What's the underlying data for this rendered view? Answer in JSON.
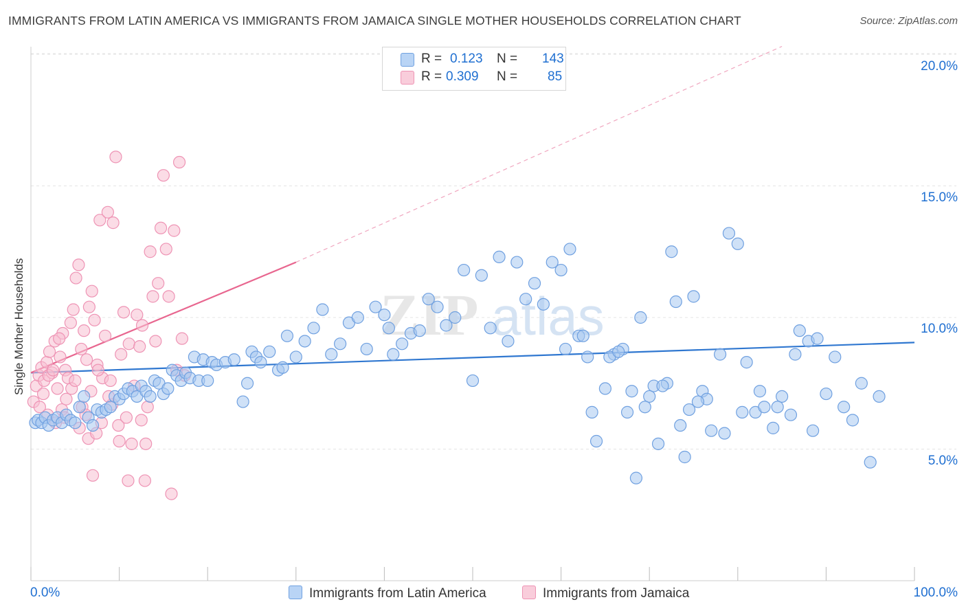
{
  "header": {
    "title": "IMMIGRANTS FROM LATIN AMERICA VS IMMIGRANTS FROM JAMAICA SINGLE MOTHER HOUSEHOLDS CORRELATION CHART",
    "source": "Source: ZipAtlas.com"
  },
  "watermark": {
    "zip": "ZIP",
    "atlas": "atlas"
  },
  "legend": {
    "blue": {
      "r_label": "R =",
      "r_value": "0.123",
      "n_label": "N =",
      "n_value": "143"
    },
    "pink": {
      "r_label": "R =",
      "r_value": "0.309",
      "n_label": "N =",
      "n_value": "85"
    }
  },
  "colors": {
    "blue_fill": "#a8c8f0",
    "blue_stroke": "#6fa0e0",
    "blue_line": "#2f77d0",
    "pink_fill": "#f7bfd2",
    "pink_stroke": "#ee93b4",
    "pink_line": "#e8668f",
    "axis_text": "#1f6fd1",
    "grid": "#e4e4e4"
  },
  "chart_data": {
    "type": "scatter",
    "title": "IMMIGRANTS FROM LATIN AMERICA VS IMMIGRANTS FROM JAMAICA SINGLE MOTHER HOUSEHOLDS CORRELATION CHART",
    "xlabel": "",
    "ylabel": "Single Mother Households",
    "xlim": [
      0,
      100
    ],
    "ylim": [
      0,
      20.5
    ],
    "x_tick_labels": [
      "0.0%",
      "100.0%"
    ],
    "y_ticks": [
      5,
      10,
      15,
      20
    ],
    "y_tick_labels": [
      "5.0%",
      "10.0%",
      "15.0%",
      "20.0%"
    ],
    "grid": true,
    "legend_position": "top-center",
    "series": [
      {
        "name": "Immigrants from Latin America",
        "color": "#a8c8f0",
        "trend": {
          "x": [
            0,
            100
          ],
          "y": [
            7.9,
            9.05
          ],
          "style": "solid"
        },
        "points": [
          [
            0.5,
            6.0
          ],
          [
            0.8,
            6.1
          ],
          [
            1.2,
            6.0
          ],
          [
            1.6,
            6.2
          ],
          [
            2.0,
            5.9
          ],
          [
            2.5,
            6.1
          ],
          [
            3.0,
            6.2
          ],
          [
            3.5,
            6.0
          ],
          [
            4.0,
            6.3
          ],
          [
            4.5,
            6.1
          ],
          [
            5.0,
            6.0
          ],
          [
            5.5,
            6.6
          ],
          [
            6.0,
            7.0
          ],
          [
            6.5,
            6.2
          ],
          [
            7.0,
            5.9
          ],
          [
            7.5,
            6.5
          ],
          [
            8.0,
            6.4
          ],
          [
            8.5,
            6.5
          ],
          [
            9.0,
            6.6
          ],
          [
            9.5,
            7.0
          ],
          [
            10.0,
            6.9
          ],
          [
            10.5,
            7.1
          ],
          [
            11.0,
            7.3
          ],
          [
            11.5,
            7.2
          ],
          [
            12.0,
            7.0
          ],
          [
            12.5,
            7.4
          ],
          [
            13.0,
            7.2
          ],
          [
            13.5,
            7.0
          ],
          [
            14.0,
            7.6
          ],
          [
            14.5,
            7.5
          ],
          [
            15.0,
            7.1
          ],
          [
            15.5,
            7.3
          ],
          [
            16.0,
            8.0
          ],
          [
            16.5,
            7.8
          ],
          [
            17.0,
            7.6
          ],
          [
            17.5,
            7.9
          ],
          [
            18.0,
            7.7
          ],
          [
            18.5,
            8.5
          ],
          [
            19.0,
            7.6
          ],
          [
            19.5,
            8.4
          ],
          [
            20.0,
            7.6
          ],
          [
            20.5,
            8.3
          ],
          [
            21.0,
            8.2
          ],
          [
            22.0,
            8.3
          ],
          [
            23.0,
            8.4
          ],
          [
            24.0,
            6.8
          ],
          [
            24.5,
            7.5
          ],
          [
            25.0,
            8.7
          ],
          [
            25.5,
            8.5
          ],
          [
            26.0,
            8.3
          ],
          [
            27.0,
            8.7
          ],
          [
            28.0,
            8.0
          ],
          [
            28.5,
            8.1
          ],
          [
            29.0,
            9.3
          ],
          [
            30.0,
            8.5
          ],
          [
            31.0,
            9.1
          ],
          [
            32.0,
            9.6
          ],
          [
            33.0,
            10.3
          ],
          [
            34.0,
            8.6
          ],
          [
            35.0,
            9.0
          ],
          [
            36.0,
            9.8
          ],
          [
            37.0,
            10.0
          ],
          [
            38.0,
            8.8
          ],
          [
            39.0,
            10.4
          ],
          [
            40.0,
            10.1
          ],
          [
            40.5,
            9.6
          ],
          [
            41.0,
            8.6
          ],
          [
            42.0,
            9.0
          ],
          [
            43.0,
            9.4
          ],
          [
            44.0,
            9.5
          ],
          [
            45.0,
            10.7
          ],
          [
            46.0,
            10.4
          ],
          [
            47.0,
            9.7
          ],
          [
            48.0,
            10.0
          ],
          [
            49.0,
            11.8
          ],
          [
            50.0,
            7.6
          ],
          [
            51.0,
            11.6
          ],
          [
            52.0,
            9.6
          ],
          [
            53.0,
            12.3
          ],
          [
            54.0,
            9.1
          ],
          [
            55.0,
            12.1
          ],
          [
            56.0,
            10.7
          ],
          [
            57.0,
            11.3
          ],
          [
            58.0,
            10.5
          ],
          [
            59.0,
            12.1
          ],
          [
            60.0,
            11.8
          ],
          [
            61.0,
            12.6
          ],
          [
            62.0,
            9.3
          ],
          [
            63.0,
            8.5
          ],
          [
            64.0,
            5.3
          ],
          [
            65.0,
            7.3
          ],
          [
            66.0,
            8.6
          ],
          [
            67.0,
            8.8
          ],
          [
            67.5,
            6.4
          ],
          [
            68.0,
            7.2
          ],
          [
            69.0,
            10.0
          ],
          [
            70.0,
            7.0
          ],
          [
            71.0,
            5.2
          ],
          [
            72.0,
            7.5
          ],
          [
            73.0,
            10.6
          ],
          [
            74.0,
            4.7
          ],
          [
            75.0,
            10.8
          ],
          [
            76.0,
            7.2
          ],
          [
            77.0,
            5.7
          ],
          [
            78.0,
            8.6
          ],
          [
            79.0,
            13.2
          ],
          [
            80.0,
            12.8
          ],
          [
            81.0,
            8.3
          ],
          [
            82.0,
            6.4
          ],
          [
            83.0,
            6.6
          ],
          [
            84.0,
            5.8
          ],
          [
            85.0,
            7.0
          ],
          [
            86.0,
            6.3
          ],
          [
            87.0,
            9.5
          ],
          [
            88.0,
            9.1
          ],
          [
            89.0,
            9.2
          ],
          [
            90.0,
            7.1
          ],
          [
            91.0,
            8.5
          ],
          [
            92.0,
            6.6
          ],
          [
            93.0,
            6.1
          ],
          [
            94.0,
            7.5
          ],
          [
            95.0,
            4.5
          ],
          [
            96.0,
            7.0
          ],
          [
            60.5,
            8.8
          ],
          [
            62.5,
            9.3
          ],
          [
            65.5,
            8.5
          ],
          [
            68.5,
            3.9
          ],
          [
            70.5,
            7.4
          ],
          [
            72.5,
            12.5
          ],
          [
            74.5,
            6.5
          ],
          [
            76.5,
            6.9
          ],
          [
            78.5,
            5.6
          ],
          [
            80.5,
            6.4
          ],
          [
            82.5,
            7.2
          ],
          [
            84.5,
            6.6
          ],
          [
            86.5,
            8.6
          ],
          [
            88.5,
            5.7
          ],
          [
            63.5,
            6.4
          ],
          [
            66.5,
            8.7
          ],
          [
            69.5,
            6.6
          ],
          [
            71.5,
            7.4
          ],
          [
            73.5,
            5.9
          ],
          [
            75.5,
            6.8
          ]
        ]
      },
      {
        "name": "Immigrants from Jamaica",
        "color": "#f7bfd2",
        "trend": {
          "x": [
            0,
            30
          ],
          "y": [
            7.9,
            12.1
          ],
          "style": "solid",
          "extended": {
            "x": [
              30,
              85
            ],
            "y": [
              12.1,
              20.3
            ],
            "style": "dashed"
          }
        },
        "points": [
          [
            0.3,
            6.8
          ],
          [
            0.6,
            7.4
          ],
          [
            0.9,
            7.8
          ],
          [
            1.2,
            8.1
          ],
          [
            1.5,
            7.6
          ],
          [
            1.8,
            8.3
          ],
          [
            2.1,
            8.7
          ],
          [
            2.4,
            7.9
          ],
          [
            2.7,
            9.1
          ],
          [
            3.0,
            7.3
          ],
          [
            3.3,
            8.5
          ],
          [
            3.6,
            9.4
          ],
          [
            3.9,
            8.0
          ],
          [
            4.2,
            7.7
          ],
          [
            4.5,
            9.8
          ],
          [
            4.8,
            10.3
          ],
          [
            5.1,
            11.5
          ],
          [
            5.4,
            12.0
          ],
          [
            5.7,
            8.8
          ],
          [
            6.0,
            9.5
          ],
          [
            6.3,
            8.4
          ],
          [
            6.6,
            10.4
          ],
          [
            6.9,
            11.0
          ],
          [
            7.2,
            9.9
          ],
          [
            7.5,
            8.2
          ],
          [
            7.8,
            13.7
          ],
          [
            8.1,
            7.7
          ],
          [
            8.4,
            9.3
          ],
          [
            8.7,
            14.0
          ],
          [
            9.0,
            7.6
          ],
          [
            9.3,
            13.6
          ],
          [
            9.6,
            16.1
          ],
          [
            9.9,
            5.9
          ],
          [
            10.2,
            8.6
          ],
          [
            10.5,
            10.2
          ],
          [
            10.8,
            6.2
          ],
          [
            11.1,
            9.0
          ],
          [
            11.4,
            5.2
          ],
          [
            11.7,
            7.4
          ],
          [
            12.0,
            10.1
          ],
          [
            12.3,
            8.9
          ],
          [
            12.6,
            9.7
          ],
          [
            12.9,
            3.8
          ],
          [
            13.2,
            6.6
          ],
          [
            13.5,
            12.5
          ],
          [
            13.8,
            10.8
          ],
          [
            14.1,
            9.1
          ],
          [
            14.4,
            11.3
          ],
          [
            14.7,
            13.4
          ],
          [
            15.0,
            15.4
          ],
          [
            15.3,
            12.6
          ],
          [
            15.6,
            10.8
          ],
          [
            15.9,
            3.3
          ],
          [
            16.2,
            13.3
          ],
          [
            16.5,
            8.0
          ],
          [
            16.8,
            15.9
          ],
          [
            17.1,
            9.2
          ],
          [
            17.4,
            7.8
          ],
          [
            2.0,
            7.8
          ],
          [
            3.5,
            6.5
          ],
          [
            4.0,
            6.9
          ],
          [
            5.5,
            5.8
          ],
          [
            6.5,
            5.4
          ],
          [
            7.0,
            4.0
          ],
          [
            8.0,
            6.0
          ],
          [
            9.2,
            6.7
          ],
          [
            10.0,
            5.3
          ],
          [
            11.0,
            3.8
          ],
          [
            12.5,
            6.1
          ],
          [
            13.0,
            5.2
          ],
          [
            2.5,
            8.0
          ],
          [
            3.2,
            9.2
          ],
          [
            4.6,
            7.3
          ],
          [
            5.8,
            6.6
          ],
          [
            6.8,
            7.2
          ],
          [
            7.6,
            8.0
          ],
          [
            8.8,
            7.0
          ],
          [
            1.0,
            6.6
          ],
          [
            1.4,
            7.1
          ],
          [
            1.9,
            6.3
          ],
          [
            2.8,
            6.0
          ],
          [
            3.8,
            6.2
          ],
          [
            5.0,
            7.6
          ],
          [
            6.2,
            6.3
          ],
          [
            7.4,
            5.6
          ]
        ]
      }
    ]
  },
  "bottom_legend": {
    "blue_label": "Immigrants from Latin America",
    "pink_label": "Immigrants from Jamaica"
  },
  "axes": {
    "y_title": "Single Mother Households",
    "x_min_label": "0.0%",
    "x_max_label": "100.0%",
    "y_labels": [
      "5.0%",
      "10.0%",
      "15.0%",
      "20.0%"
    ]
  }
}
